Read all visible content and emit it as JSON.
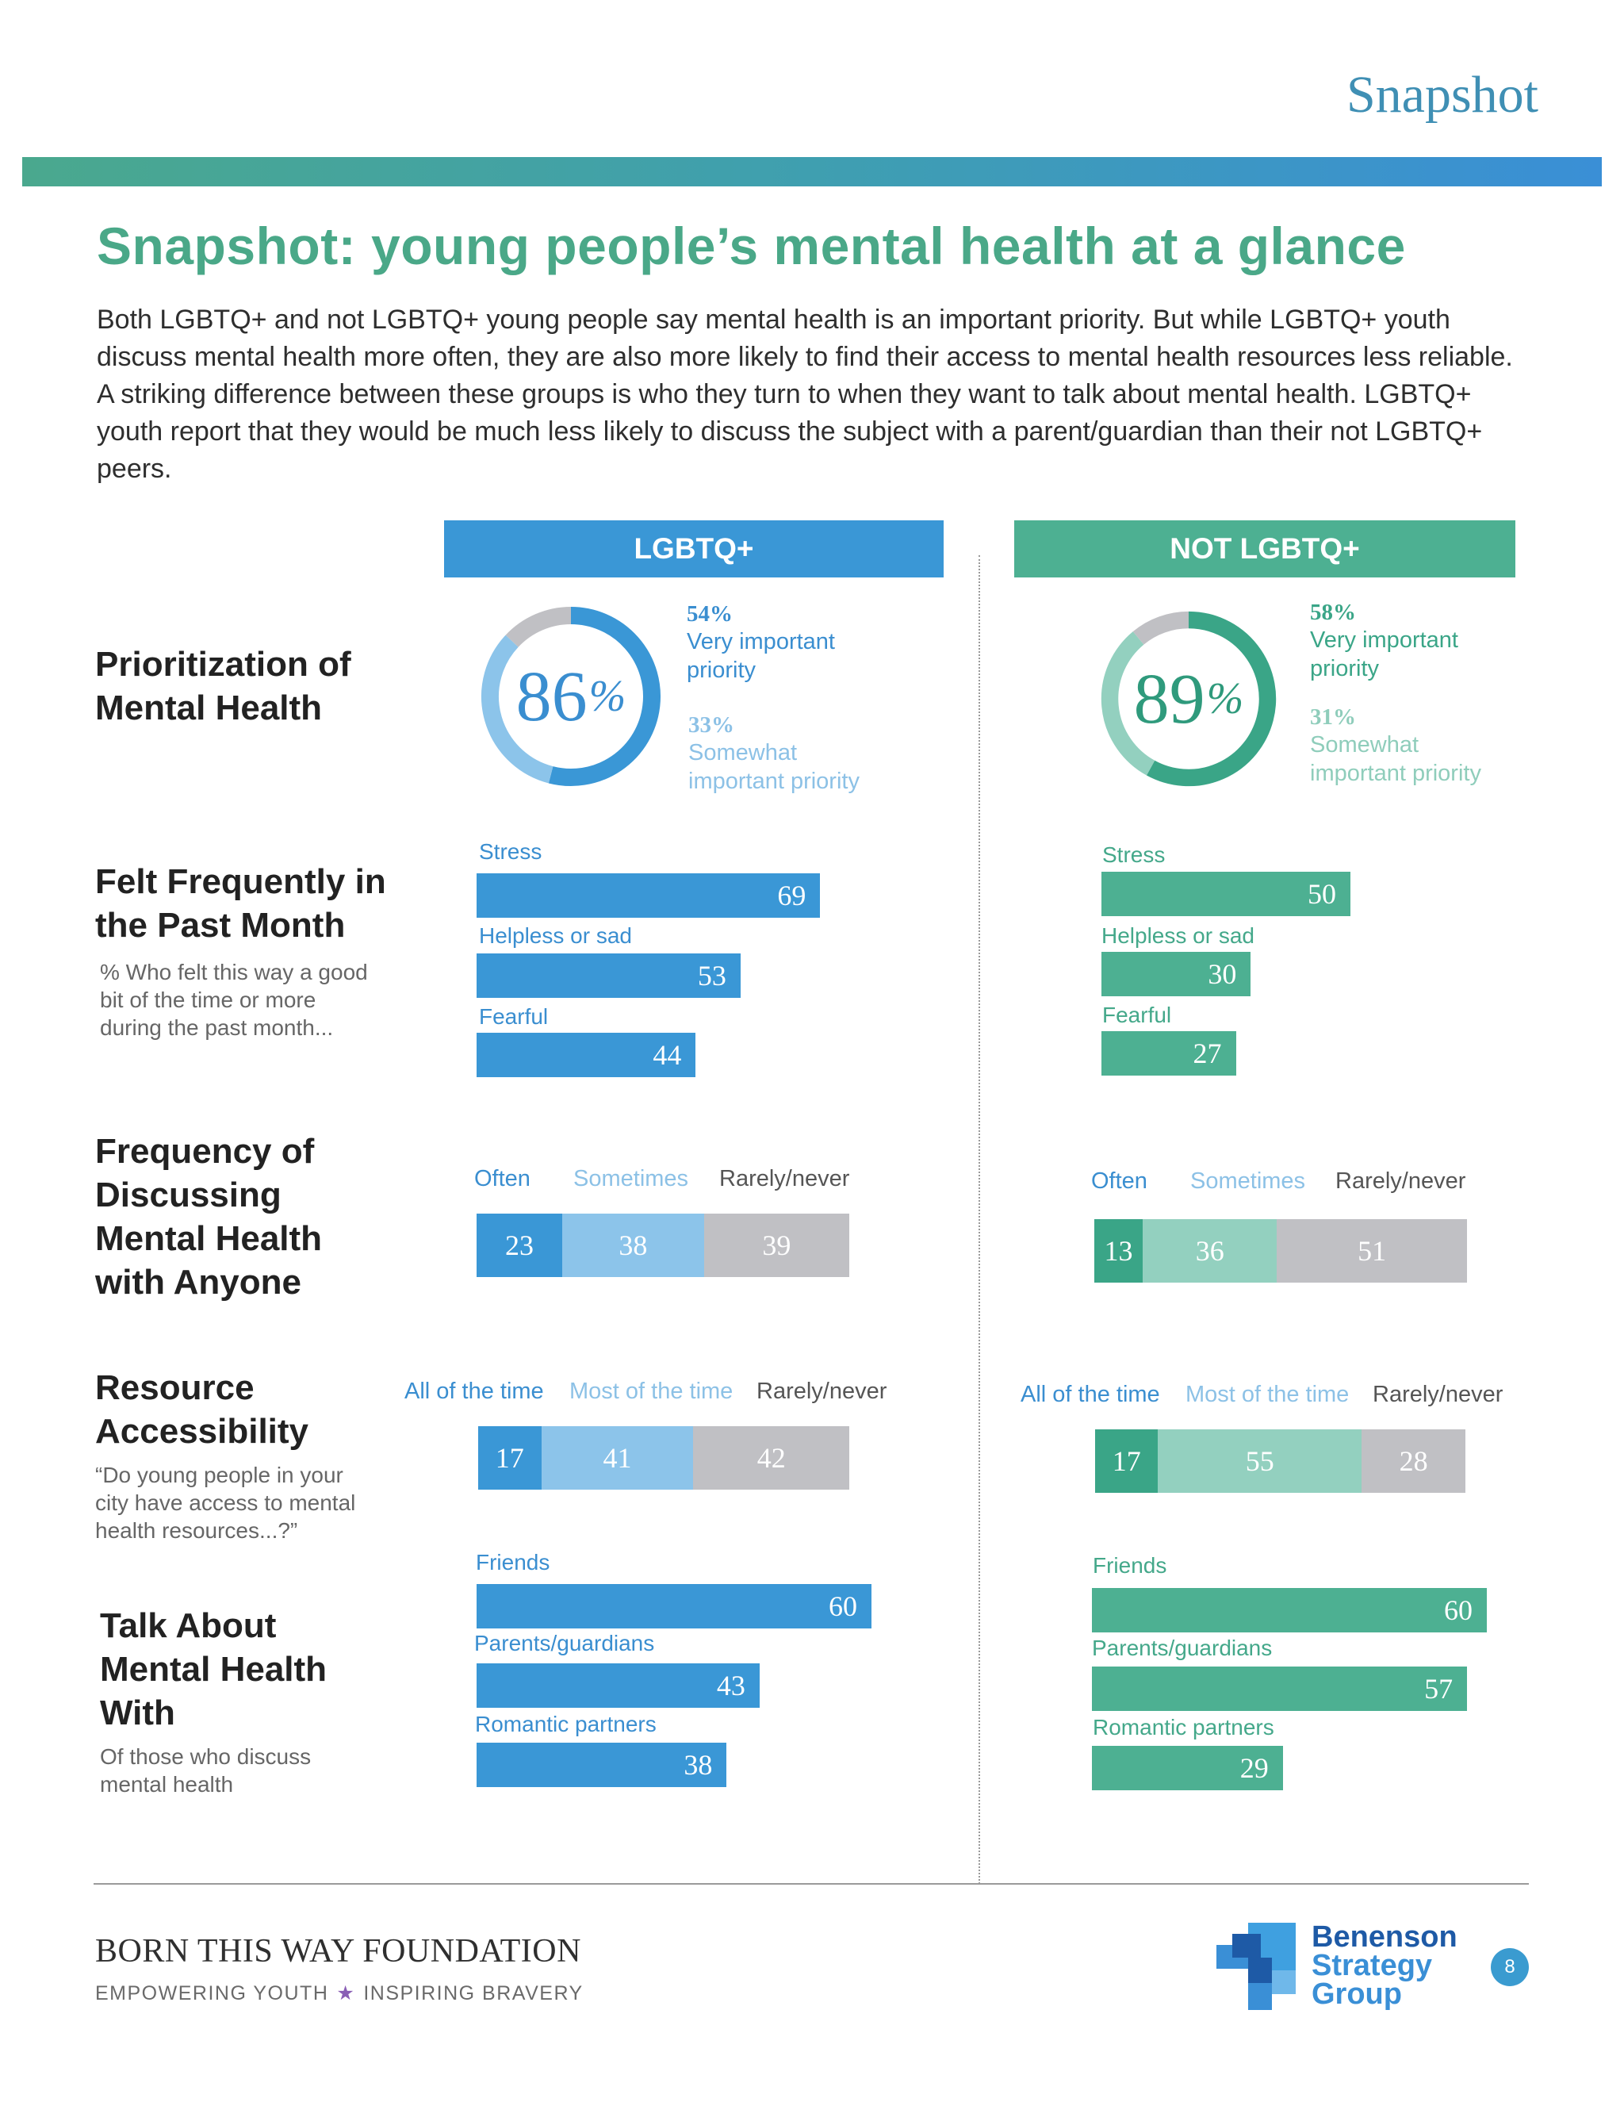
{
  "page": {
    "top_label": "Snapshot",
    "title": "Snapshot: young people’s mental health at a glance",
    "intro": "Both LGBTQ+ and not LGBTQ+ young people say mental health is an important priority. But while LGBTQ+ youth discuss mental health more often, they are also more likely to find their access to mental health resources less reliable. A striking difference between these groups is who they turn to when they want to talk about mental health. LGBTQ+ youth report that they would be much less likely to discuss the subject with a parent/guardian than their not LGBTQ+ peers.",
    "page_number": "8"
  },
  "columns": {
    "lgbtq": "LGBTQ+",
    "not_lgbtq": "NOT LGBTQ+"
  },
  "sections": {
    "priority": {
      "title_1": "Prioritization of",
      "title_2": "Mental Health"
    },
    "felt": {
      "title_1": "Felt Frequently in",
      "title_2": "the Past Month",
      "sub_1": "% Who felt this way a good",
      "sub_2": "bit of the time or more",
      "sub_3": "during the past month..."
    },
    "discuss": {
      "title_1": "Frequency of",
      "title_2": "Discussing",
      "title_3": "Mental Health",
      "title_4": "with Anyone"
    },
    "access": {
      "title_1": "Resource",
      "title_2": "Accessibility",
      "sub_1": "“Do young people in your",
      "sub_2": "city have access to mental",
      "sub_3": "health resources...?”"
    },
    "talk": {
      "title_1": "Talk About",
      "title_2": "Mental Health",
      "title_3": "With",
      "sub_1": "Of those who discuss",
      "sub_2": "mental health"
    }
  },
  "chart_data": [
    {
      "id": "priority_lgbtq",
      "type": "pie",
      "group": "LGBTQ+",
      "total": "86",
      "total_suffix": "%",
      "slices": [
        {
          "label_1": "Very important",
          "label_2": "priority",
          "pct_label": "54%",
          "value": 54,
          "color": "#3a97d6"
        },
        {
          "label_1": "Somewhat",
          "label_2": "important priority",
          "pct_label": "33%",
          "value": 33,
          "color": "#8cc4ea"
        },
        {
          "value": 13,
          "color": "#c0c0c4"
        }
      ]
    },
    {
      "id": "priority_not",
      "type": "pie",
      "group": "NOT LGBTQ+",
      "total": "89",
      "total_suffix": "%",
      "slices": [
        {
          "label_1": "Very important",
          "label_2": "priority",
          "pct_label": "58%",
          "value": 58,
          "color": "#3aa587"
        },
        {
          "label_1": "Somewhat",
          "label_2": "important priority",
          "pct_label": "31%",
          "value": 31,
          "color": "#93d0bf"
        },
        {
          "value": 11,
          "color": "#c0c0c4"
        }
      ]
    },
    {
      "id": "felt_lgbtq",
      "type": "bar",
      "group": "LGBTQ+",
      "categories": [
        "Stress",
        "Helpless or sad",
        "Fearful"
      ],
      "values": [
        69,
        53,
        44
      ]
    },
    {
      "id": "felt_not",
      "type": "bar",
      "group": "NOT LGBTQ+",
      "categories": [
        "Stress",
        "Helpless or sad",
        "Fearful"
      ],
      "values": [
        50,
        30,
        27
      ]
    },
    {
      "id": "discuss_lgbtq",
      "type": "bar",
      "stacked": true,
      "group": "LGBTQ+",
      "series": [
        {
          "name": "Often",
          "value": 23,
          "color": "#3a97d6",
          "label_color": "#3a8ed0"
        },
        {
          "name": "Sometimes",
          "value": 38,
          "color": "#8cc4ea",
          "label_color": "#8cc1e6"
        },
        {
          "name": "Rarely/never",
          "value": 39,
          "color": "#c0c0c4",
          "label_color": "#555555"
        }
      ]
    },
    {
      "id": "discuss_not",
      "type": "bar",
      "stacked": true,
      "group": "NOT LGBTQ+",
      "series": [
        {
          "name": "Often",
          "value": 13,
          "color": "#3aa587",
          "label_color": "#3a8ed0"
        },
        {
          "name": "Sometimes",
          "value": 36,
          "color": "#93d0bf",
          "label_color": "#8cc1e6"
        },
        {
          "name": "Rarely/never",
          "value": 51,
          "color": "#c0c0c4",
          "label_color": "#555555"
        }
      ]
    },
    {
      "id": "access_lgbtq",
      "type": "bar",
      "stacked": true,
      "group": "LGBTQ+",
      "series": [
        {
          "name": "All of the time",
          "value": 17,
          "color": "#3a97d6",
          "label_color": "#3a8ed0"
        },
        {
          "name": "Most of the time",
          "value": 41,
          "color": "#8cc4ea",
          "label_color": "#8cc1e6"
        },
        {
          "name": "Rarely/never",
          "value": 42,
          "color": "#c0c0c4",
          "label_color": "#555555"
        }
      ]
    },
    {
      "id": "access_not",
      "type": "bar",
      "stacked": true,
      "group": "NOT LGBTQ+",
      "series": [
        {
          "name": "All of the time",
          "value": 17,
          "color": "#3aa587",
          "label_color": "#3a8ed0"
        },
        {
          "name": "Most of the time",
          "value": 55,
          "color": "#93d0bf",
          "label_color": "#8cc1e6"
        },
        {
          "name": "Rarely/never",
          "value": 28,
          "color": "#c0c0c4",
          "label_color": "#555555"
        }
      ]
    },
    {
      "id": "talk_lgbtq",
      "type": "bar",
      "group": "LGBTQ+",
      "categories": [
        "Friends",
        "Parents/guardians",
        "Romantic partners"
      ],
      "values": [
        60,
        43,
        38
      ]
    },
    {
      "id": "talk_not",
      "type": "bar",
      "group": "NOT LGBTQ+",
      "categories": [
        "Friends",
        "Parents/guardians",
        "Romantic partners"
      ],
      "values": [
        60,
        57,
        29
      ]
    }
  ],
  "footer": {
    "org": "BORN THIS WAY FOUNDATION",
    "tag_left": "EMPOWERING YOUTH",
    "tag_star": "★",
    "tag_right": "INSPIRING BRAVERY",
    "partner_1": "Benenson",
    "partner_2": "Strategy",
    "partner_3": "Group"
  }
}
